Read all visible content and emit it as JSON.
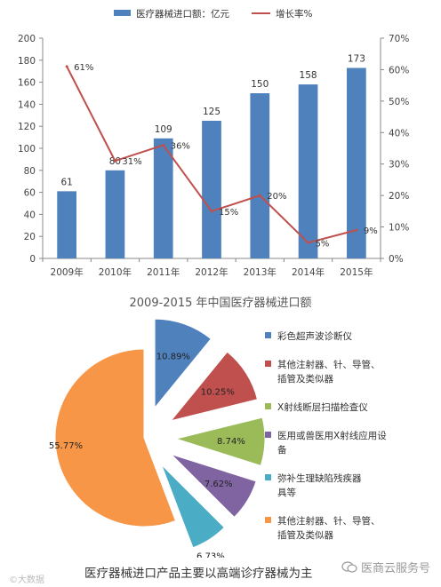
{
  "chart_data": [
    {
      "type": "bar+line",
      "title": "",
      "categories": [
        "2009年",
        "2010年",
        "2011年",
        "2012年",
        "2013年",
        "2014年",
        "2015年"
      ],
      "series": [
        {
          "name": "医疗器械进口额：亿元",
          "type": "bar",
          "axis": "left",
          "color": "#4f81bd",
          "values": [
            61,
            80,
            109,
            125,
            150,
            158,
            173
          ],
          "labels": [
            "61",
            "80",
            "109",
            "125",
            "150",
            "158",
            "173"
          ]
        },
        {
          "name": "增长率%",
          "type": "line",
          "axis": "right",
          "color": "#c0504d",
          "values": [
            61,
            31,
            36,
            15,
            20,
            5,
            9
          ],
          "labels": [
            "61%",
            "31%",
            "36%",
            "15%",
            "20%",
            "5%",
            "9%"
          ]
        }
      ],
      "left_axis": {
        "ylim": [
          0,
          200
        ],
        "ticks": [
          "0",
          "20",
          "40",
          "60",
          "80",
          "100",
          "120",
          "140",
          "160",
          "180",
          "200"
        ]
      },
      "right_axis": {
        "ylim": [
          0,
          70
        ],
        "ticks": [
          "0%",
          "10%",
          "20%",
          "30%",
          "40%",
          "50%",
          "60%",
          "70%"
        ]
      },
      "legend_position": "top",
      "grid": false
    },
    {
      "type": "pie",
      "title": "",
      "slices": [
        {
          "name": "彩色超声波诊断仪",
          "value": 10.89,
          "label": "10.89%",
          "color": "#4f81bd"
        },
        {
          "name": "其他注射器、针、导管、插管及类似器",
          "value": 10.25,
          "label": "10.25%",
          "color": "#c0504d"
        },
        {
          "name": "X射线断层扫描检查仪",
          "value": 8.74,
          "label": "8.74%",
          "color": "#9bbb59"
        },
        {
          "name": "医用或兽医用X射线应用设备",
          "value": 7.62,
          "label": "7.62%",
          "color": "#8064a2"
        },
        {
          "name": "弥补生理缺陷残疾器具等",
          "value": 6.73,
          "label": "6.73%",
          "color": "#4bacc6"
        },
        {
          "name": "其他注射器、针、导管、插管及类似器",
          "value": 55.77,
          "label": "55.77%",
          "color": "#f79646"
        }
      ],
      "legend_position": "right"
    }
  ],
  "captions": {
    "top": "2009-2015 年中国医疗器械进口额",
    "bottom": "医疗器械进口产品主要以高端诊疗器械为主"
  },
  "watermarks": {
    "left": "©大数据",
    "right": "医商云服务号"
  },
  "legend_lines": {
    "pie": [
      [
        "彩色超声波诊断仪"
      ],
      [
        "其他注射器、针、导管、",
        "插管及类似器"
      ],
      [
        "X射线断层扫描检查仪"
      ],
      [
        "医用或兽医用X射线应用设",
        "备"
      ],
      [
        "弥补生理缺陷残疾器",
        "具等"
      ],
      [
        "其他注射器、针、导管、",
        "插管及类似器"
      ]
    ]
  }
}
